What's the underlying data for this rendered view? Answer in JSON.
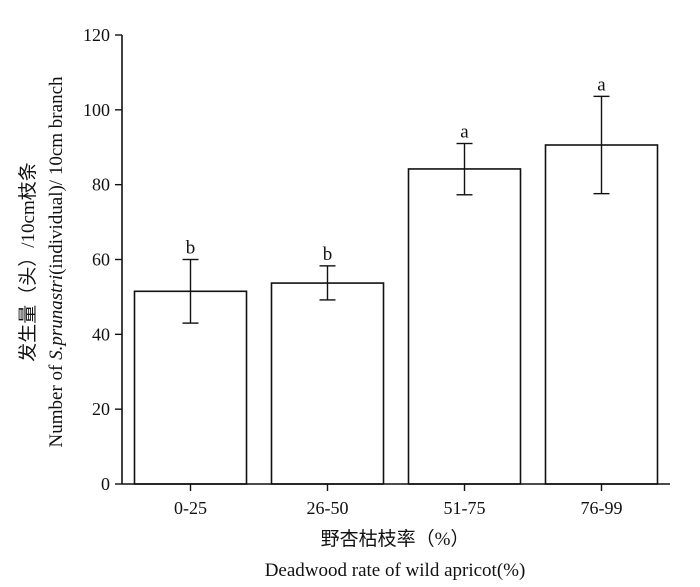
{
  "chart_data": {
    "type": "bar",
    "categories": [
      "0-25",
      "26-50",
      "51-75",
      "76-99"
    ],
    "values": [
      51.5,
      53.7,
      84.2,
      90.6
    ],
    "error_low": [
      43.0,
      49.2,
      77.3,
      77.6
    ],
    "error_high": [
      60.0,
      58.3,
      91.0,
      103.6
    ],
    "significance": [
      "b",
      "b",
      "a",
      "a"
    ],
    "ylim": [
      0,
      120
    ],
    "yticks": [
      0,
      20,
      40,
      60,
      80,
      100,
      120
    ],
    "ylabel_cn": "发生量（头）/10cm枝条",
    "ylabel_en_prefix": "Number of ",
    "ylabel_en_italic": "S.prunastri",
    "ylabel_en_suffix": "(individual)/ 10cm branch",
    "xlabel_cn": "野杏枯枝率（%）",
    "xlabel_en": "Deadwood rate of wild apricot(%)",
    "grid": false,
    "legend": "none"
  }
}
